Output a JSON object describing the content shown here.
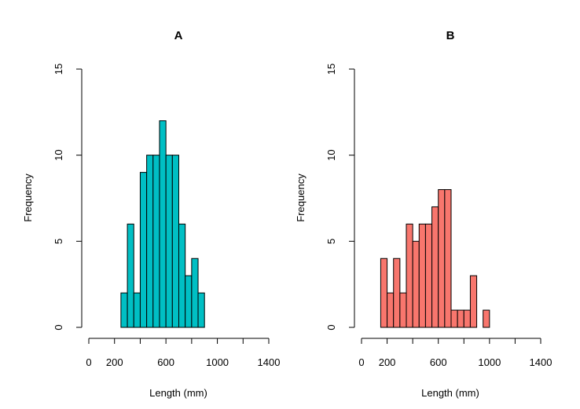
{
  "chart_data": [
    {
      "type": "bar",
      "title": "A",
      "xlabel": "Length (mm)",
      "ylabel": "Frequency",
      "xlim": [
        0,
        1400
      ],
      "ylim": [
        0,
        15
      ],
      "xticks": [
        0,
        200,
        400,
        600,
        800,
        1000,
        1200,
        1400
      ],
      "xtick_labels": [
        "0",
        "200",
        "",
        "600",
        "",
        "1000",
        "",
        "1400"
      ],
      "yticks": [
        0,
        5,
        10,
        15
      ],
      "ytick_labels": [
        "0",
        "5",
        "10",
        "15"
      ],
      "bin_width": 50,
      "bins_start": [
        250,
        300,
        350,
        400,
        450,
        500,
        550,
        600,
        650,
        700,
        750,
        800,
        850
      ],
      "values": [
        2,
        6,
        2,
        9,
        10,
        10,
        12,
        10,
        10,
        6,
        3,
        4,
        2
      ],
      "color": "#00BFC4",
      "grid": false,
      "legend": "none"
    },
    {
      "type": "bar",
      "title": "B",
      "xlabel": "Length (mm)",
      "ylabel": "Frequency",
      "xlim": [
        0,
        1400
      ],
      "ylim": [
        0,
        15
      ],
      "xticks": [
        0,
        200,
        400,
        600,
        800,
        1000,
        1200,
        1400
      ],
      "xtick_labels": [
        "0",
        "200",
        "",
        "600",
        "",
        "1000",
        "",
        "1400"
      ],
      "yticks": [
        0,
        5,
        10,
        15
      ],
      "ytick_labels": [
        "0",
        "5",
        "10",
        "15"
      ],
      "bin_width": 50,
      "bins_start": [
        150,
        200,
        250,
        300,
        350,
        400,
        450,
        500,
        550,
        600,
        650,
        700,
        750,
        800,
        850,
        900,
        950
      ],
      "values": [
        4,
        2,
        4,
        2,
        6,
        5,
        6,
        6,
        7,
        8,
        8,
        1,
        1,
        1,
        3,
        0,
        1
      ],
      "color": "#F8766D",
      "grid": false,
      "legend": "none"
    }
  ]
}
